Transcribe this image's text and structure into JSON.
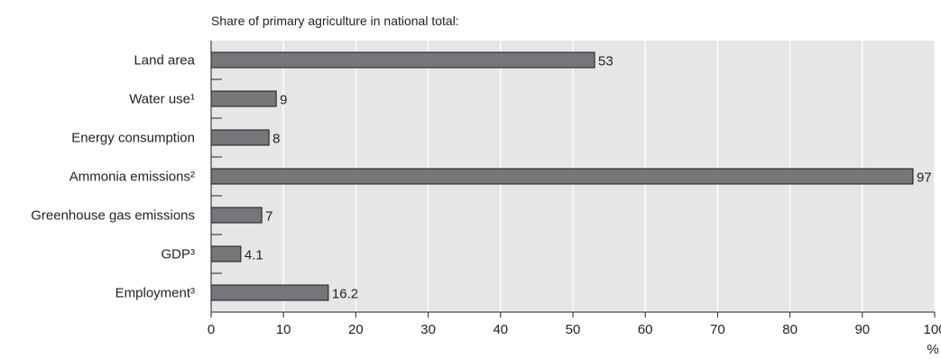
{
  "chart_data": {
    "type": "bar",
    "orientation": "horizontal",
    "subtitle": "Share of primary agriculture in national total:",
    "categories": [
      "Land area",
      "Water use¹",
      "Energy consumption",
      "Ammonia emissions²",
      "Greenhouse gas emissions",
      "GDP³",
      "Employment³"
    ],
    "values": [
      53,
      9,
      8,
      97,
      7,
      4.1,
      16.2
    ],
    "value_labels": [
      "53",
      "9",
      "8",
      "97",
      "7",
      "4.1",
      "16.2"
    ],
    "xlim": [
      0,
      100
    ],
    "xticks": [
      0,
      10,
      20,
      30,
      40,
      50,
      60,
      70,
      80,
      90,
      100
    ],
    "xtick_labels": [
      "0",
      "10",
      "20",
      "30",
      "40",
      "50",
      "60",
      "70",
      "80",
      "90",
      "100"
    ],
    "xunit": "%",
    "grid": true,
    "colors": {
      "bar": "#76767a",
      "bar_stroke": "#1a1a1a",
      "plot_bg": "#e6e6e6",
      "grid": "#ffffff"
    }
  }
}
